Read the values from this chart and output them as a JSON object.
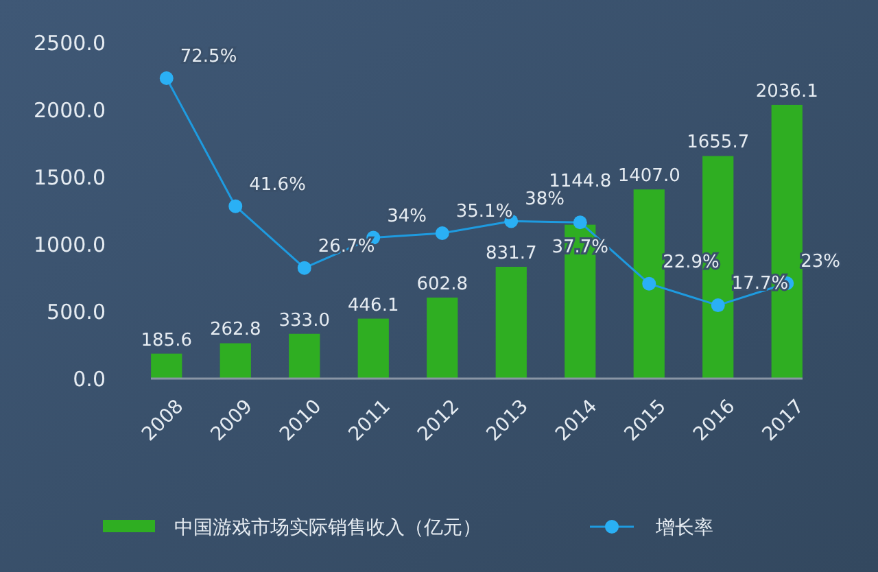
{
  "chart_data": {
    "type": "bar",
    "categories": [
      "2008",
      "2009",
      "2010",
      "2011",
      "2012",
      "2013",
      "2014",
      "2015",
      "2016",
      "2017"
    ],
    "series": [
      {
        "name": "中国游戏市场实际销售收入（亿元）",
        "color": "#2fae22",
        "values": [
          185.6,
          262.8,
          333.0,
          446.1,
          602.8,
          831.7,
          1144.8,
          1407.0,
          1655.7,
          2036.1
        ],
        "value_labels": [
          "185.6",
          "262.8",
          "333.0",
          "446.1",
          "602.8",
          "831.7",
          "1144.8",
          "1407.0",
          "1655.7",
          "2036.1"
        ]
      },
      {
        "name": "增长率",
        "type": "line",
        "axis": "y2",
        "color": "#1e9be0",
        "values": [
          72.5,
          41.6,
          26.7,
          34,
          35.1,
          38,
          37.7,
          22.9,
          17.7,
          23
        ],
        "value_labels": [
          "72.5%",
          "41.6%",
          "26.7%",
          "34%",
          "35.1%",
          "38%",
          "37.7%",
          "22.9%",
          "17.7%",
          "23%"
        ]
      }
    ],
    "ylim": [
      0,
      2500
    ],
    "yticks": [
      {
        "value": 0,
        "label": "0.0"
      },
      {
        "value": 500,
        "label": "500.0"
      },
      {
        "value": 1000,
        "label": "1000.0"
      },
      {
        "value": 1500,
        "label": "1500.0"
      },
      {
        "value": 2000,
        "label": "2000.0"
      },
      {
        "value": 2500,
        "label": "2500.0"
      }
    ],
    "marker": "circle",
    "line_style": "solid",
    "grid": false,
    "legend": "bottom"
  }
}
